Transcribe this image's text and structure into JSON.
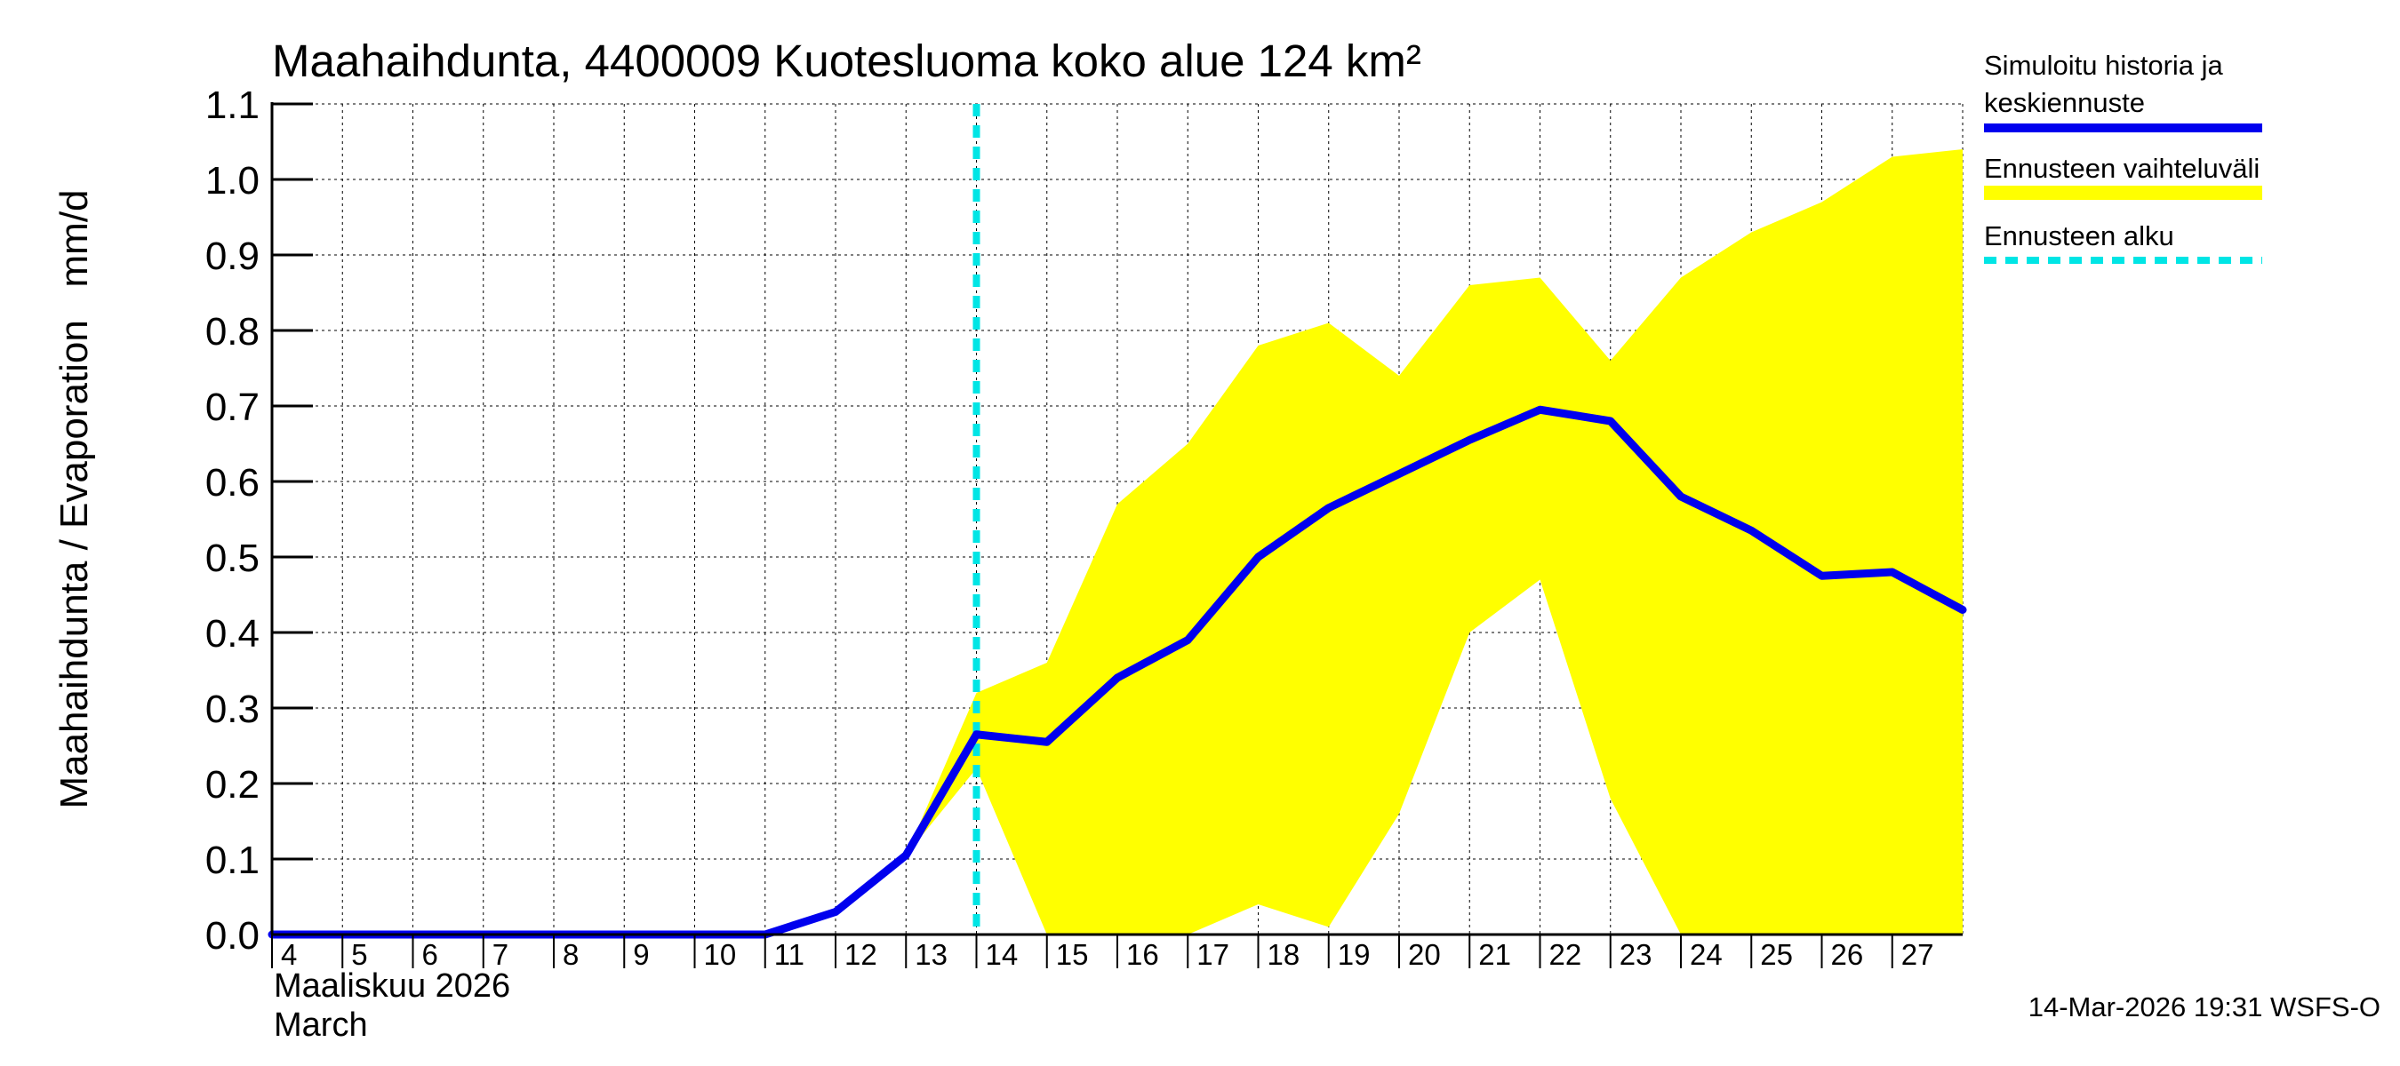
{
  "chart_data": {
    "type": "line",
    "title": "Maahaihdunta, 4400009 Kuotesluoma koko alue 124 km²",
    "ylabel": "Maahaihdunta / Evaporation   mm/d",
    "xlabel_lines": [
      "Maaliskuu 2026",
      "March"
    ],
    "ylim": [
      0.0,
      1.1
    ],
    "xlim": [
      4,
      28
    ],
    "y_ticks": [
      "0.0",
      "0.1",
      "0.2",
      "0.3",
      "0.4",
      "0.5",
      "0.6",
      "0.7",
      "0.8",
      "0.9",
      "1.0",
      "1.1"
    ],
    "x_ticks": [
      "4",
      "5",
      "6",
      "7",
      "8",
      "9",
      "10",
      "11",
      "12",
      "13",
      "14",
      "15",
      "16",
      "17",
      "18",
      "19",
      "20",
      "21",
      "22",
      "23",
      "24",
      "25",
      "26",
      "27"
    ],
    "forecast_start_day": 14,
    "series": [
      {
        "name": "Simuloitu historia ja keskiennuste",
        "color": "#0000ee",
        "x": [
          4,
          5,
          6,
          7,
          8,
          9,
          10,
          11,
          12,
          13,
          14,
          15,
          16,
          17,
          18,
          19,
          20,
          21,
          22,
          23,
          24,
          25,
          26,
          27,
          28
        ],
        "y": [
          0.0,
          0.0,
          0.0,
          0.0,
          0.0,
          0.0,
          0.0,
          0.0,
          0.03,
          0.105,
          0.265,
          0.255,
          0.34,
          0.39,
          0.5,
          0.565,
          0.61,
          0.655,
          0.695,
          0.68,
          0.58,
          0.535,
          0.475,
          0.48,
          0.43
        ]
      }
    ],
    "band": {
      "name": "Ennusteen vaihteluväli",
      "color": "#ffff00",
      "x": [
        13,
        14,
        15,
        16,
        17,
        18,
        19,
        20,
        21,
        22,
        23,
        24,
        25,
        26,
        27,
        28
      ],
      "upper": [
        0.105,
        0.32,
        0.36,
        0.57,
        0.65,
        0.78,
        0.81,
        0.74,
        0.86,
        0.87,
        0.76,
        0.87,
        0.93,
        0.97,
        1.03,
        1.04
      ],
      "lower": [
        0.105,
        0.22,
        0.0,
        0.0,
        0.0,
        0.04,
        0.01,
        0.16,
        0.4,
        0.47,
        0.18,
        0.0,
        0.0,
        0.0,
        0.0,
        0.0
      ]
    },
    "legend": [
      {
        "label": "Simuloitu historia ja keskiennuste",
        "color": "#0000ee",
        "style": "solid"
      },
      {
        "label": "Ennusteen vaihteluväli",
        "color": "#ffff00",
        "style": "band"
      },
      {
        "label": "Ennusteen alku",
        "color": "#00e5e5",
        "style": "dashed"
      }
    ],
    "legend_placement": "right"
  },
  "legend_text": {
    "item0_line1": "Simuloitu historia ja",
    "item0_line2": "keskiennuste",
    "item1": "Ennusteen vaihteluväli",
    "item2": "Ennusteen alku"
  },
  "footer": "14-Mar-2026 19:31 WSFS-O"
}
